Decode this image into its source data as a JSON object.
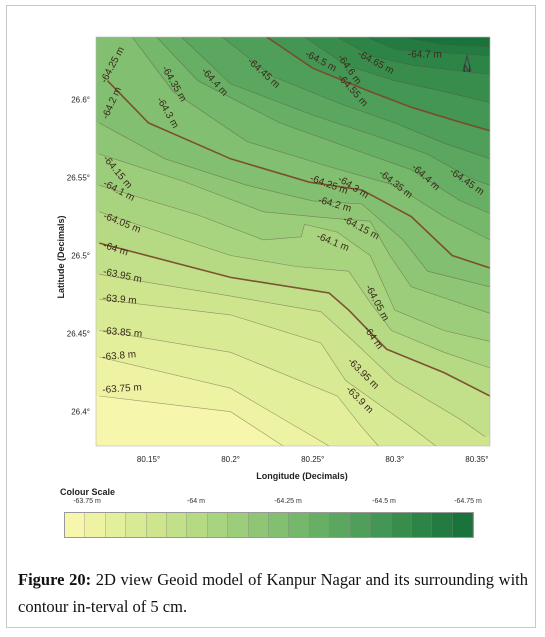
{
  "chart_data": {
    "type": "heatmap",
    "subtype": "contour-map",
    "title": "",
    "xlabel": "Longitude (Decimals)",
    "ylabel": "Latitude (Decimals)",
    "x_ticks": [
      {
        "value": 80.15,
        "label": "80.15°"
      },
      {
        "value": 80.2,
        "label": "80.2°"
      },
      {
        "value": 80.25,
        "label": "80.25°"
      },
      {
        "value": 80.3,
        "label": "80.3°"
      },
      {
        "value": 80.35,
        "label": "80.35°"
      }
    ],
    "y_ticks": [
      {
        "value": 26.6,
        "label": "26.6°"
      },
      {
        "value": 26.55,
        "label": "26.55°"
      },
      {
        "value": 26.5,
        "label": "26.5°"
      },
      {
        "value": 26.45,
        "label": "26.45°"
      },
      {
        "value": 26.4,
        "label": "26.4°"
      }
    ],
    "xlim": [
      80.118,
      80.358
    ],
    "ylim": [
      26.378,
      26.64
    ],
    "north_arrow_label": "N",
    "contour_interval": "5 cm",
    "contours": [
      {
        "value": -63.75,
        "label": "-63.75 m",
        "emphasized": false,
        "points": [
          [
            80.12,
            26.41
          ],
          [
            80.2,
            26.4
          ],
          [
            80.232,
            26.378
          ]
        ]
      },
      {
        "value": -63.8,
        "label": "-63.8 m",
        "emphasized": false,
        "points": [
          [
            80.12,
            26.435
          ],
          [
            80.2,
            26.415
          ],
          [
            80.26,
            26.378
          ]
        ]
      },
      {
        "value": -63.85,
        "label": "-63.85 m",
        "emphasized": false,
        "points": [
          [
            80.12,
            26.452
          ],
          [
            80.2,
            26.438
          ],
          [
            80.265,
            26.41
          ],
          [
            80.28,
            26.39
          ],
          [
            80.29,
            26.378
          ]
        ]
      },
      {
        "value": -63.9,
        "label": "-63.9 m",
        "emphasized": false,
        "points": [
          [
            80.12,
            26.472
          ],
          [
            80.2,
            26.462
          ],
          [
            80.255,
            26.444
          ],
          [
            80.27,
            26.42
          ],
          [
            80.31,
            26.39
          ],
          [
            80.325,
            26.378
          ]
        ]
      },
      {
        "value": -63.95,
        "label": "-63.95 m",
        "emphasized": false,
        "points": [
          [
            80.12,
            26.488
          ],
          [
            80.2,
            26.474
          ],
          [
            80.255,
            26.464
          ],
          [
            80.275,
            26.445
          ],
          [
            80.3,
            26.42
          ],
          [
            80.34,
            26.395
          ],
          [
            80.355,
            26.384
          ]
        ]
      },
      {
        "value": -64.0,
        "label": "-64 m",
        "emphasized": true,
        "points": [
          [
            80.12,
            26.508
          ],
          [
            80.2,
            26.486
          ],
          [
            80.26,
            26.476
          ],
          [
            80.272,
            26.465
          ],
          [
            80.295,
            26.44
          ],
          [
            80.33,
            26.425
          ],
          [
            80.358,
            26.41
          ]
        ]
      },
      {
        "value": -64.05,
        "label": "-64.05 m",
        "emphasized": false,
        "points": [
          [
            80.12,
            26.528
          ],
          [
            80.2,
            26.5
          ],
          [
            80.24,
            26.493
          ],
          [
            80.272,
            26.49
          ],
          [
            80.285,
            26.47
          ],
          [
            80.298,
            26.452
          ],
          [
            80.33,
            26.438
          ],
          [
            80.358,
            26.428
          ]
        ]
      },
      {
        "value": -64.1,
        "label": "-64.1 m",
        "emphasized": false,
        "points": [
          [
            80.12,
            26.545
          ],
          [
            80.18,
            26.526
          ],
          [
            80.22,
            26.51
          ],
          [
            80.243,
            26.512
          ],
          [
            80.245,
            26.52
          ],
          [
            80.265,
            26.515
          ],
          [
            80.285,
            26.5
          ],
          [
            80.3,
            26.465
          ],
          [
            80.33,
            26.452
          ],
          [
            80.358,
            26.445
          ]
        ]
      },
      {
        "value": -64.15,
        "label": "-64.15 m",
        "emphasized": false,
        "points": [
          [
            80.12,
            26.565
          ],
          [
            80.17,
            26.548
          ],
          [
            80.22,
            26.528
          ],
          [
            80.26,
            26.524
          ],
          [
            80.285,
            26.522
          ],
          [
            80.297,
            26.5
          ],
          [
            80.31,
            26.48
          ],
          [
            80.358,
            26.463
          ]
        ]
      },
      {
        "value": -64.2,
        "label": "-64.2 m",
        "emphasized": false,
        "points": [
          [
            80.12,
            26.585
          ],
          [
            80.16,
            26.562
          ],
          [
            80.21,
            26.545
          ],
          [
            80.25,
            26.535
          ],
          [
            80.28,
            26.533
          ],
          [
            80.305,
            26.51
          ],
          [
            80.32,
            26.49
          ],
          [
            80.358,
            26.48
          ]
        ]
      },
      {
        "value": -64.25,
        "label": "-64.25 m",
        "emphasized": true,
        "points": [
          [
            80.125,
            26.612
          ],
          [
            80.15,
            26.585
          ],
          [
            80.2,
            26.562
          ],
          [
            80.248,
            26.547
          ],
          [
            80.28,
            26.542
          ],
          [
            80.31,
            26.525
          ],
          [
            80.335,
            26.5
          ],
          [
            80.358,
            26.492
          ]
        ]
      },
      {
        "value": -64.3,
        "label": "-64.3 m",
        "emphasized": false,
        "points": [
          [
            80.14,
            26.64
          ],
          [
            80.165,
            26.605
          ],
          [
            80.21,
            26.573
          ],
          [
            80.26,
            26.557
          ],
          [
            80.3,
            26.545
          ],
          [
            80.33,
            26.525
          ],
          [
            80.358,
            26.51
          ]
        ]
      },
      {
        "value": -64.35,
        "label": "-64.35 m",
        "emphasized": false,
        "points": [
          [
            80.155,
            26.64
          ],
          [
            80.18,
            26.612
          ],
          [
            80.23,
            26.585
          ],
          [
            80.275,
            26.568
          ],
          [
            80.31,
            26.555
          ],
          [
            80.34,
            26.535
          ],
          [
            80.358,
            26.527
          ]
        ]
      },
      {
        "value": -64.4,
        "label": "-64.4 m",
        "emphasized": false,
        "points": [
          [
            80.17,
            26.64
          ],
          [
            80.2,
            26.61
          ],
          [
            80.25,
            26.59
          ],
          [
            80.29,
            26.576
          ],
          [
            80.32,
            26.565
          ],
          [
            80.345,
            26.55
          ],
          [
            80.358,
            26.545
          ]
        ]
      },
      {
        "value": -64.45,
        "label": "-64.45 m",
        "emphasized": false,
        "points": [
          [
            80.195,
            26.64
          ],
          [
            80.225,
            26.615
          ],
          [
            80.265,
            26.598
          ],
          [
            80.3,
            26.585
          ],
          [
            80.33,
            26.572
          ],
          [
            80.358,
            26.562
          ]
        ]
      },
      {
        "value": -64.5,
        "label": "-64.5 m",
        "emphasized": true,
        "points": [
          [
            80.222,
            26.64
          ],
          [
            80.25,
            26.62
          ],
          [
            80.285,
            26.605
          ],
          [
            80.31,
            26.595
          ],
          [
            80.338,
            26.586
          ],
          [
            80.358,
            26.58
          ]
        ]
      },
      {
        "value": -64.55,
        "label": "-64.55 m",
        "emphasized": false,
        "points": [
          [
            80.245,
            26.64
          ],
          [
            80.27,
            26.622
          ],
          [
            80.3,
            26.612
          ],
          [
            80.33,
            26.605
          ],
          [
            80.358,
            26.598
          ]
        ]
      },
      {
        "value": -64.6,
        "label": "-64.6 m",
        "emphasized": false,
        "points": [
          [
            80.265,
            26.64
          ],
          [
            80.285,
            26.628
          ],
          [
            80.31,
            26.622
          ],
          [
            80.358,
            26.616
          ]
        ]
      },
      {
        "value": -64.65,
        "label": "-64.65 m",
        "emphasized": false,
        "points": [
          [
            80.283,
            26.64
          ],
          [
            80.3,
            26.632
          ],
          [
            80.358,
            26.628
          ]
        ]
      },
      {
        "value": -64.7,
        "label": "-64.7 m",
        "emphasized": false,
        "points": [
          [
            80.305,
            26.64
          ],
          [
            80.33,
            26.635
          ],
          [
            80.358,
            26.634
          ]
        ]
      }
    ],
    "contour_labels": [
      {
        "text": "-64.25 m",
        "x": 80.124,
        "y": 26.61,
        "angle": -62
      },
      {
        "text": "-64.35 m",
        "x": 80.158,
        "y": 26.62,
        "angle": 60
      },
      {
        "text": "-64.3 m",
        "x": 80.155,
        "y": 26.6,
        "angle": 60
      },
      {
        "text": "-64.4 m",
        "x": 80.182,
        "y": 26.618,
        "angle": 48
      },
      {
        "text": "-64.45 m",
        "x": 80.21,
        "y": 26.624,
        "angle": 42
      },
      {
        "text": "-64.5 m",
        "x": 80.245,
        "y": 26.628,
        "angle": 28
      },
      {
        "text": "-64.6 m",
        "x": 80.265,
        "y": 26.627,
        "angle": 55
      },
      {
        "text": "-64.65 m",
        "x": 80.277,
        "y": 26.628,
        "angle": 28
      },
      {
        "text": "-64.55 m",
        "x": 80.265,
        "y": 26.614,
        "angle": 48
      },
      {
        "text": "-64.7 m",
        "x": 80.308,
        "y": 26.627,
        "angle": 0
      },
      {
        "text": "-64.2 m",
        "x": 80.125,
        "y": 26.587,
        "angle": -66
      },
      {
        "text": "-64.15 m",
        "x": 80.122,
        "y": 26.562,
        "angle": 50
      },
      {
        "text": "-64.1 m",
        "x": 80.122,
        "y": 26.545,
        "angle": 28
      },
      {
        "text": "-64.05 m",
        "x": 80.122,
        "y": 26.524,
        "angle": 22
      },
      {
        "text": "-64 m",
        "x": 80.122,
        "y": 26.505,
        "angle": 18
      },
      {
        "text": "-63.95 m",
        "x": 80.122,
        "y": 26.488,
        "angle": 12
      },
      {
        "text": "-63.9 m",
        "x": 80.122,
        "y": 26.471,
        "angle": 5
      },
      {
        "text": "-63.85 m",
        "x": 80.122,
        "y": 26.45,
        "angle": 5
      },
      {
        "text": "-63.8 m",
        "x": 80.122,
        "y": 26.433,
        "angle": -5
      },
      {
        "text": "-63.75 m",
        "x": 80.122,
        "y": 26.412,
        "angle": -4
      },
      {
        "text": "-64.25 m",
        "x": 80.248,
        "y": 26.548,
        "angle": 20
      },
      {
        "text": "-64.3 m",
        "x": 80.265,
        "y": 26.548,
        "angle": 32
      },
      {
        "text": "-64.35 m",
        "x": 80.29,
        "y": 26.552,
        "angle": 38
      },
      {
        "text": "-64.4 m",
        "x": 80.31,
        "y": 26.556,
        "angle": 42
      },
      {
        "text": "-64.45 m",
        "x": 80.333,
        "y": 26.553,
        "angle": 35
      },
      {
        "text": "-64.2 m",
        "x": 80.253,
        "y": 26.534,
        "angle": 16
      },
      {
        "text": "-64.15 m",
        "x": 80.268,
        "y": 26.522,
        "angle": 28
      },
      {
        "text": "-64.1 m",
        "x": 80.252,
        "y": 26.511,
        "angle": 22
      },
      {
        "text": "-64.05 m",
        "x": 80.282,
        "y": 26.48,
        "angle": 62
      },
      {
        "text": "-64 m",
        "x": 80.281,
        "y": 26.453,
        "angle": 55
      },
      {
        "text": "-63.95 m",
        "x": 80.271,
        "y": 26.432,
        "angle": 45
      },
      {
        "text": "-63.9 m",
        "x": 80.27,
        "y": 26.414,
        "angle": 45
      }
    ]
  },
  "colour_scale": {
    "title": "Colour Scale",
    "tick_labels": [
      "-63.75 m",
      "-64 m",
      "-64.25 m",
      "-64.5 m",
      "-64.75 m"
    ],
    "colors": [
      "#f7f6ad",
      "#eef3a3",
      "#e4ef9c",
      "#d9ea95",
      "#cee58e",
      "#c2e089",
      "#b6da84",
      "#a9d47f",
      "#9ccd7a",
      "#8fc675",
      "#82bf70",
      "#75b76b",
      "#68af66",
      "#5ba760",
      "#4f9f5a",
      "#439654",
      "#388d4d",
      "#2d8447",
      "#237b41",
      "#1b733c"
    ]
  },
  "caption": {
    "lead": "Figure 20:",
    "text": " 2D view Geoid model of Kanpur Nagar and its surrounding with contour in-terval of 5 cm."
  },
  "colors": {
    "low": "#f7f6ad",
    "high": "#1b733c",
    "contour_line": "#5b4a3a",
    "emphasized_line": "#7a4a2a"
  }
}
